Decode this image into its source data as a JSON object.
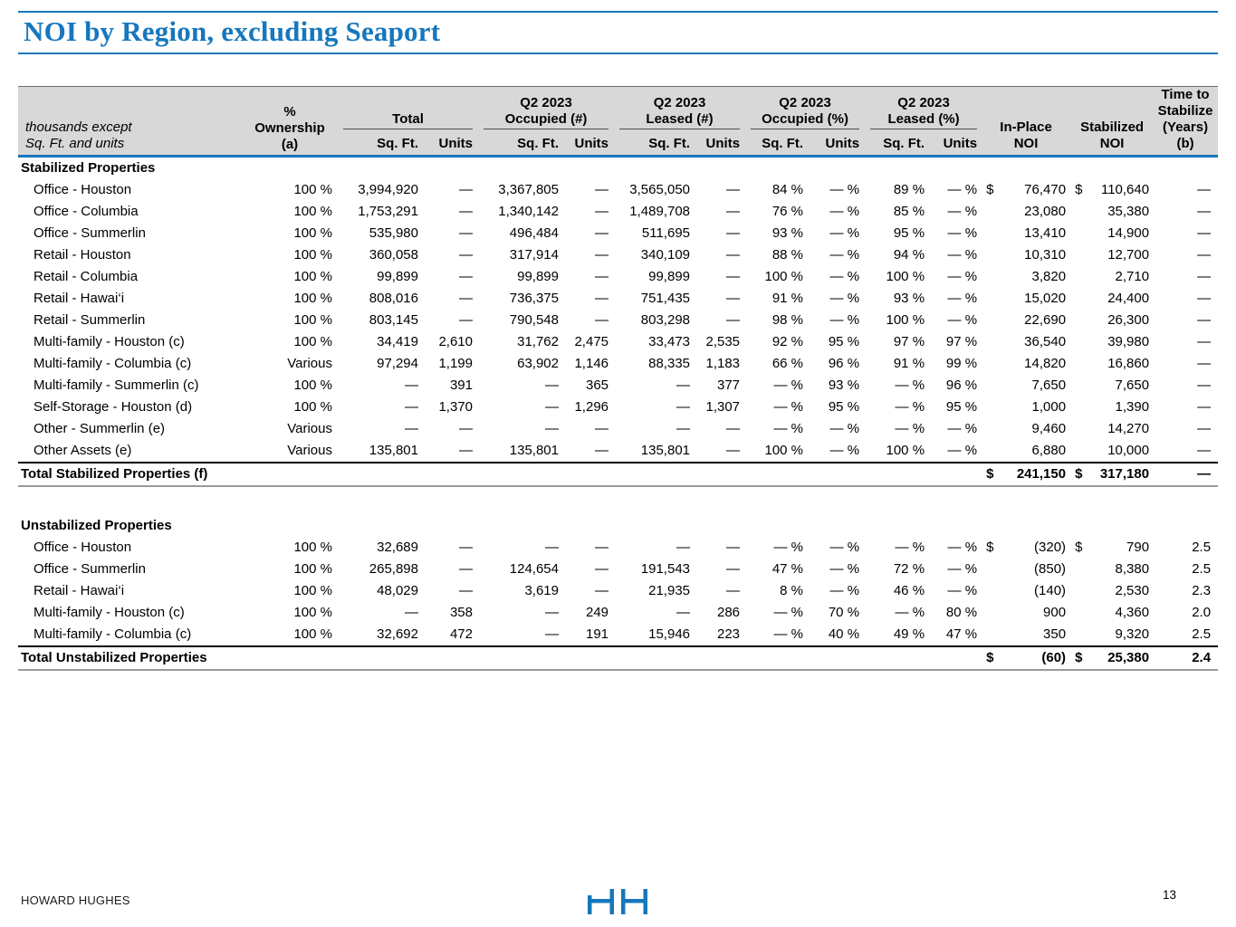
{
  "page": {
    "title": "NOI by Region, excluding Seaport",
    "footer_brand": "HOWARD HUGHES",
    "page_number": "13"
  },
  "colors": {
    "accent_blue": "#1677bd",
    "header_gray": "#d8d8d8"
  },
  "table": {
    "note": [
      "thousands except",
      "Sq. Ft. and units"
    ],
    "ownership_header": [
      "%",
      "Ownership",
      "(a)"
    ],
    "groups": [
      {
        "title1": "",
        "title2": "Total",
        "sub1": "Sq. Ft.",
        "sub2": "Units"
      },
      {
        "title1": "Q2 2023",
        "title2": "Occupied (#)",
        "sub1": "Sq. Ft.",
        "sub2": "Units"
      },
      {
        "title1": "Q2 2023",
        "title2": "Leased (#)",
        "sub1": "Sq. Ft.",
        "sub2": "Units"
      },
      {
        "title1": "Q2 2023",
        "title2": "Occupied (%)",
        "sub1": "Sq. Ft.",
        "sub2": "Units"
      },
      {
        "title1": "Q2 2023",
        "title2": "Leased (%)",
        "sub1": "Sq. Ft.",
        "sub2": "Units"
      }
    ],
    "in_place_noi_header": [
      "In-Place",
      "NOI"
    ],
    "stabilized_noi_header": [
      "Stabilized",
      "NOI"
    ],
    "time_header": [
      "Time to",
      "Stabilize",
      "(Years)",
      "(b)"
    ],
    "rows": [
      {
        "type": "section",
        "label": "Stabilized Properties"
      },
      {
        "type": "data",
        "cells": [
          "Office - Houston",
          "100 %",
          "3,994,920",
          "—",
          "3,367,805",
          "—",
          "3,565,050",
          "—",
          "84 %",
          "— %",
          "89 %",
          "— %",
          "$",
          "76,470",
          "$",
          "110,640",
          "—"
        ]
      },
      {
        "type": "data",
        "cells": [
          "Office - Columbia",
          "100 %",
          "1,753,291",
          "—",
          "1,340,142",
          "—",
          "1,489,708",
          "—",
          "76 %",
          "— %",
          "85 %",
          "— %",
          "",
          "23,080",
          "",
          "35,380",
          "—"
        ]
      },
      {
        "type": "data",
        "cells": [
          "Office - Summerlin",
          "100 %",
          "535,980",
          "—",
          "496,484",
          "—",
          "511,695",
          "—",
          "93 %",
          "— %",
          "95 %",
          "— %",
          "",
          "13,410",
          "",
          "14,900",
          "—"
        ]
      },
      {
        "type": "data",
        "cells": [
          "Retail - Houston",
          "100 %",
          "360,058",
          "—",
          "317,914",
          "—",
          "340,109",
          "—",
          "88 %",
          "— %",
          "94 %",
          "— %",
          "",
          "10,310",
          "",
          "12,700",
          "—"
        ]
      },
      {
        "type": "data",
        "cells": [
          "Retail - Columbia",
          "100 %",
          "99,899",
          "—",
          "99,899",
          "—",
          "99,899",
          "—",
          "100 %",
          "— %",
          "100 %",
          "— %",
          "",
          "3,820",
          "",
          "2,710",
          "—"
        ]
      },
      {
        "type": "data",
        "cells": [
          "Retail - Hawai‘i",
          "100 %",
          "808,016",
          "—",
          "736,375",
          "—",
          "751,435",
          "—",
          "91 %",
          "— %",
          "93 %",
          "— %",
          "",
          "15,020",
          "",
          "24,400",
          "—"
        ]
      },
      {
        "type": "data",
        "cells": [
          "Retail - Summerlin",
          "100 %",
          "803,145",
          "—",
          "790,548",
          "—",
          "803,298",
          "—",
          "98 %",
          "— %",
          "100 %",
          "— %",
          "",
          "22,690",
          "",
          "26,300",
          "—"
        ]
      },
      {
        "type": "data",
        "cells": [
          "Multi-family - Houston (c)",
          "100 %",
          "34,419",
          "2,610",
          "31,762",
          "2,475",
          "33,473",
          "2,535",
          "92 %",
          "95 %",
          "97 %",
          "97 %",
          "",
          "36,540",
          "",
          "39,980",
          "—"
        ]
      },
      {
        "type": "data",
        "cells": [
          "Multi-family - Columbia (c)",
          "Various",
          "97,294",
          "1,199",
          "63,902",
          "1,146",
          "88,335",
          "1,183",
          "66 %",
          "96 %",
          "91 %",
          "99 %",
          "",
          "14,820",
          "",
          "16,860",
          "—"
        ]
      },
      {
        "type": "data",
        "cells": [
          "Multi-family - Summerlin (c)",
          "100 %",
          "—",
          "391",
          "—",
          "365",
          "—",
          "377",
          "— %",
          "93 %",
          "— %",
          "96 %",
          "",
          "7,650",
          "",
          "7,650",
          "—"
        ]
      },
      {
        "type": "data",
        "cells": [
          "Self-Storage - Houston (d)",
          "100 %",
          "—",
          "1,370",
          "—",
          "1,296",
          "—",
          "1,307",
          "— %",
          "95 %",
          "— %",
          "95 %",
          "",
          "1,000",
          "",
          "1,390",
          "—"
        ]
      },
      {
        "type": "data",
        "cells": [
          "Other - Summerlin (e)",
          "Various",
          "—",
          "—",
          "—",
          "—",
          "—",
          "—",
          "— %",
          "— %",
          "— %",
          "— %",
          "",
          "9,460",
          "",
          "14,270",
          "—"
        ]
      },
      {
        "type": "data",
        "cells": [
          "Other Assets (e)",
          "Various",
          "135,801",
          "—",
          "135,801",
          "—",
          "135,801",
          "—",
          "100 %",
          "— %",
          "100 %",
          "— %",
          "",
          "6,880",
          "",
          "10,000",
          "—"
        ]
      },
      {
        "type": "total",
        "cells": [
          "Total Stabilized Properties (f)",
          "",
          "",
          "",
          "",
          "",
          "",
          "",
          "",
          "",
          "",
          "",
          "$",
          "241,150",
          "$",
          "317,180",
          "—"
        ]
      },
      {
        "type": "spacer"
      },
      {
        "type": "section",
        "label": "Unstabilized Properties"
      },
      {
        "type": "data",
        "cells": [
          "Office - Houston",
          "100 %",
          "32,689",
          "—",
          "—",
          "—",
          "—",
          "—",
          "— %",
          "— %",
          "— %",
          "— %",
          "$",
          "(320)",
          "$",
          "790",
          "2.5"
        ]
      },
      {
        "type": "data",
        "cells": [
          "Office - Summerlin",
          "100 %",
          "265,898",
          "—",
          "124,654",
          "—",
          "191,543",
          "—",
          "47 %",
          "— %",
          "72 %",
          "— %",
          "",
          "(850)",
          "",
          "8,380",
          "2.5"
        ]
      },
      {
        "type": "data",
        "cells": [
          "Retail - Hawai‘i",
          "100 %",
          "48,029",
          "—",
          "3,619",
          "—",
          "21,935",
          "—",
          "8 %",
          "— %",
          "46 %",
          "— %",
          "",
          "(140)",
          "",
          "2,530",
          "2.3"
        ]
      },
      {
        "type": "data",
        "cells": [
          "Multi-family - Houston (c)",
          "100 %",
          "—",
          "358",
          "—",
          "249",
          "—",
          "286",
          "— %",
          "70 %",
          "— %",
          "80 %",
          "",
          "900",
          "",
          "4,360",
          "2.0"
        ]
      },
      {
        "type": "data",
        "cells": [
          "Multi-family - Columbia (c)",
          "100 %",
          "32,692",
          "472",
          "—",
          "191",
          "15,946",
          "223",
          "— %",
          "40 %",
          "49 %",
          "47 %",
          "",
          "350",
          "",
          "9,320",
          "2.5"
        ]
      },
      {
        "type": "total",
        "cells": [
          "Total Unstabilized Properties",
          "",
          "",
          "",
          "",
          "",
          "",
          "",
          "",
          "",
          "",
          "",
          "$",
          "(60)",
          "$",
          "25,380",
          "2.4"
        ]
      }
    ]
  }
}
